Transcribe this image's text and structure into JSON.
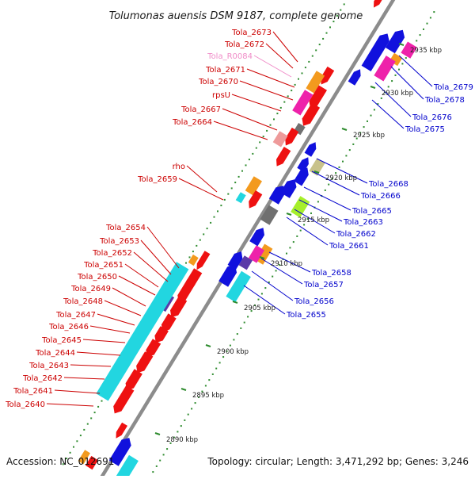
{
  "title": "Tolumonas auensis DSM 9187, complete genome",
  "footer": {
    "accession": "Accession: NC_012691",
    "topology": "Topology: circular; Length: 3,471,292 bp; Genes: 3,246"
  },
  "colors": {
    "left_label": "#cc0000",
    "right_label": "#0000cc",
    "rna_label": "#f08cc8",
    "backbone": "#8c8c8c",
    "dots": "#2e8b2e",
    "gene_red": "#ee1111",
    "gene_blue": "#1111dd",
    "gene_cyan": "#22d6e0",
    "gene_magenta": "#ee22aa",
    "gene_orange": "#f39a1e",
    "gene_purple": "#5a3aa8",
    "gene_gray": "#707070",
    "gene_pink": "#ee9a9a",
    "gene_olive": "#c8c28a",
    "gene_lime": "#a6ef2a"
  },
  "scale": {
    "ticks": [
      "2890 kbp",
      "2895 kbp",
      "2900 kbp",
      "2905 kbp",
      "2910 kbp",
      "2915 kbp",
      "2920 kbp",
      "2925 kbp",
      "2930 kbp",
      "2935 kbp"
    ]
  },
  "left_labels": [
    {
      "text": "Tola_2673",
      "type": "cds"
    },
    {
      "text": "Tola_2672",
      "type": "cds"
    },
    {
      "text": "Tola_R0084",
      "type": "rna"
    },
    {
      "text": "Tola_2671",
      "type": "cds"
    },
    {
      "text": "Tola_2670",
      "type": "cds"
    },
    {
      "text": "rpsU",
      "type": "cds"
    },
    {
      "text": "Tola_2667",
      "type": "cds"
    },
    {
      "text": "Tola_2664",
      "type": "cds"
    },
    {
      "text": "rho",
      "type": "cds"
    },
    {
      "text": "Tola_2659",
      "type": "cds"
    },
    {
      "text": "Tola_2654",
      "type": "cds"
    },
    {
      "text": "Tola_2653",
      "type": "cds"
    },
    {
      "text": "Tola_2652",
      "type": "cds"
    },
    {
      "text": "Tola_2651",
      "type": "cds"
    },
    {
      "text": "Tola_2650",
      "type": "cds"
    },
    {
      "text": "Tola_2649",
      "type": "cds"
    },
    {
      "text": "Tola_2648",
      "type": "cds"
    },
    {
      "text": "Tola_2647",
      "type": "cds"
    },
    {
      "text": "Tola_2646",
      "type": "cds"
    },
    {
      "text": "Tola_2645",
      "type": "cds"
    },
    {
      "text": "Tola_2644",
      "type": "cds"
    },
    {
      "text": "Tola_2643",
      "type": "cds"
    },
    {
      "text": "Tola_2642",
      "type": "cds"
    },
    {
      "text": "Tola_2641",
      "type": "cds"
    },
    {
      "text": "Tola_2640",
      "type": "cds"
    }
  ],
  "right_labels": [
    {
      "text": "Tola_2679"
    },
    {
      "text": "Tola_2678"
    },
    {
      "text": "Tola_2676"
    },
    {
      "text": "Tola_2675"
    },
    {
      "text": "Tola_2668"
    },
    {
      "text": "Tola_2666"
    },
    {
      "text": "Tola_2665"
    },
    {
      "text": "Tola_2663"
    },
    {
      "text": "Tola_2662"
    },
    {
      "text": "Tola_2661"
    },
    {
      "text": "Tola_2658"
    },
    {
      "text": "Tola_2657"
    },
    {
      "text": "Tola_2656"
    },
    {
      "text": "Tola_2655"
    }
  ]
}
